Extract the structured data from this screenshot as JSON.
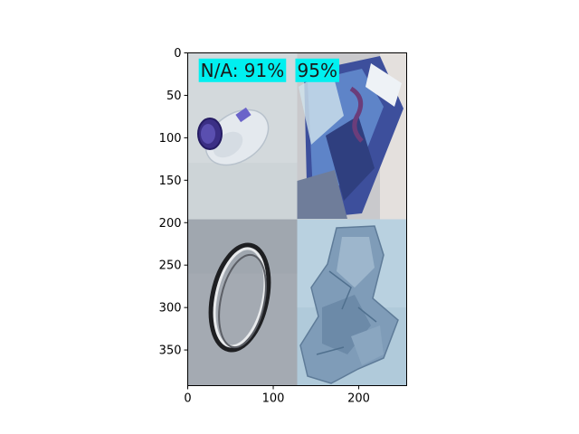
{
  "chart_data": {
    "type": "image",
    "title": "",
    "xlabel": "",
    "ylabel": "",
    "xlim": [
      0,
      256
    ],
    "ylim": [
      392,
      0
    ],
    "x_ticks": [
      0,
      100,
      200
    ],
    "y_ticks": [
      0,
      50,
      100,
      150,
      200,
      250,
      300,
      350
    ],
    "grid": false,
    "legend": "none",
    "tiles": [
      {
        "name": "plastic-bottle",
        "x": [
          0,
          128
        ],
        "y": [
          0,
          196
        ],
        "color": "#d4dadc"
      },
      {
        "name": "printed-paper-carton",
        "x": [
          128,
          256
        ],
        "y": [
          0,
          196
        ],
        "color": "#8c9db4"
      },
      {
        "name": "metal-ring",
        "x": [
          0,
          128
        ],
        "y": [
          196,
          392
        ],
        "color": "#a2a8b0"
      },
      {
        "name": "crumpled-plastic-bag",
        "x": [
          128,
          256
        ],
        "y": [
          196,
          392
        ],
        "color": "#a3bfd1"
      }
    ],
    "annotations": [
      {
        "text": "N/A: 91%",
        "x": 15,
        "y": 28,
        "box_color": "#00f0f0"
      },
      {
        "text": "95%",
        "x": 128,
        "y": 28,
        "box_color": "#00f0f0"
      }
    ]
  },
  "colors": {
    "label_box": "#00f0f0",
    "axis": "#000000",
    "background": "#ffffff"
  }
}
